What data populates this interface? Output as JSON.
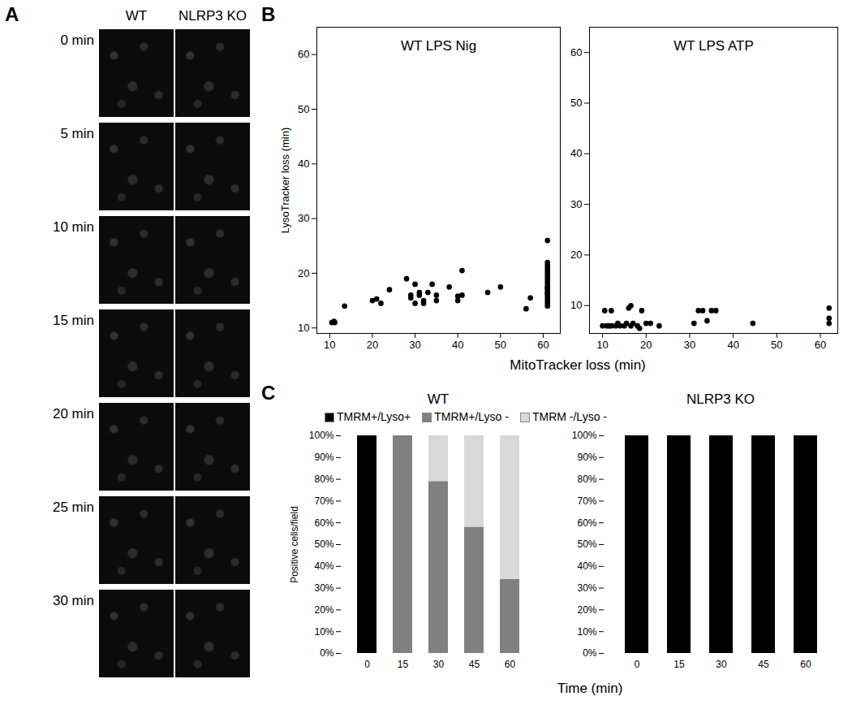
{
  "panel_labels": [
    "A",
    "B",
    "C"
  ],
  "panel_a": {
    "columns": [
      "WT",
      "NLRP3 KO"
    ],
    "rows": [
      "0 min",
      "5 min",
      "10 min",
      "15 min",
      "20 min",
      "25 min",
      "30 min"
    ]
  },
  "chart_data": [
    {
      "type": "scatter",
      "title": "WT LPS Nig",
      "xlabel": "MitoTracker loss (min)",
      "ylabel": "LysoTracker loss (min)",
      "color": "#000000",
      "marker": "circle",
      "grid": false,
      "xlim": [
        7,
        64
      ],
      "ylim": [
        9,
        65
      ],
      "xticks": [
        10,
        20,
        30,
        40,
        50,
        60
      ],
      "yticks": [
        10,
        20,
        30,
        40,
        50,
        60
      ],
      "x": [
        10.5,
        11,
        11.2,
        13.5,
        20,
        21,
        22,
        24,
        28,
        29,
        29,
        30,
        30,
        31,
        31,
        32,
        32,
        33,
        34,
        35,
        35,
        38,
        40,
        40,
        41,
        41,
        47,
        50,
        56,
        57,
        61,
        61,
        61,
        61,
        61,
        61,
        61,
        61,
        61,
        61,
        61,
        61,
        61,
        61,
        61,
        61,
        61,
        61,
        61,
        61
      ],
      "y": [
        11,
        11.2,
        11,
        14,
        15,
        15.3,
        14.5,
        17,
        19,
        16,
        15.5,
        18,
        14.5,
        16,
        16.5,
        15,
        14.5,
        16.5,
        18,
        15,
        16,
        17.5,
        15,
        15.8,
        20.5,
        16,
        16.5,
        17.5,
        13.5,
        15.5,
        14,
        14.5,
        15,
        15.5,
        16,
        16.3,
        16.5,
        17,
        17.3,
        17.5,
        18,
        18.5,
        19,
        19.5,
        20,
        20.5,
        21,
        21.5,
        22,
        26
      ]
    },
    {
      "type": "scatter",
      "title": "WT LPS ATP",
      "color": "#000000",
      "marker": "circle",
      "grid": false,
      "xlim": [
        7,
        64
      ],
      "ylim": [
        4.5,
        65
      ],
      "xticks": [
        10,
        20,
        30,
        40,
        50,
        60
      ],
      "yticks": [
        10,
        20,
        30,
        40,
        50,
        60
      ],
      "x": [
        10,
        10.5,
        11,
        11.5,
        12,
        12,
        13,
        13.5,
        14,
        15,
        15.5,
        16,
        16.5,
        16.5,
        17,
        18,
        18.5,
        19,
        20,
        21,
        23,
        31,
        32,
        33,
        34,
        35,
        36,
        44.5,
        62,
        62,
        62
      ],
      "y": [
        6,
        9,
        6,
        6,
        6,
        9,
        6,
        6.5,
        6,
        6,
        6.5,
        9.5,
        10,
        6,
        6.5,
        6,
        5.5,
        9,
        6.5,
        6.5,
        6,
        6.5,
        9,
        9,
        7,
        9,
        9,
        6.5,
        9.5,
        7.5,
        6.5
      ]
    },
    {
      "type": "bar",
      "stacked": true,
      "title": "WT",
      "xlabel": "Time (min)",
      "ylabel": "Positive cells/field",
      "legend": "top",
      "grid": false,
      "categories": [
        "0",
        "15",
        "30",
        "45",
        "60"
      ],
      "ylim": [
        0,
        100
      ],
      "yticks": [
        {
          "value": 0,
          "label": "0%"
        },
        {
          "value": 10,
          "label": "10%"
        },
        {
          "value": 20,
          "label": "20%"
        },
        {
          "value": 30,
          "label": "30%"
        },
        {
          "value": 40,
          "label": "40%"
        },
        {
          "value": 50,
          "label": "50%"
        },
        {
          "value": 60,
          "label": "60%"
        },
        {
          "value": 70,
          "label": "70%"
        },
        {
          "value": 80,
          "label": "80%"
        },
        {
          "value": 90,
          "label": "90%"
        },
        {
          "value": 100,
          "label": "100%"
        }
      ],
      "series": [
        {
          "name": "TMRM+/Lyso+",
          "color": "#000000",
          "values": [
            100,
            0,
            0,
            0,
            0
          ]
        },
        {
          "name": "TMRM+/Lyso -",
          "color": "#808080",
          "values": [
            0,
            100,
            79,
            58,
            34
          ]
        },
        {
          "name": "TMRM -/Lyso -",
          "color": "#d9d9d9",
          "values": [
            0,
            0,
            21,
            42,
            66
          ]
        }
      ]
    },
    {
      "type": "bar",
      "stacked": true,
      "title": "NLRP3 KO",
      "grid": false,
      "categories": [
        "0",
        "15",
        "30",
        "45",
        "60"
      ],
      "ylim": [
        0,
        100
      ],
      "yticks": [
        {
          "value": 0,
          "label": "0%"
        },
        {
          "value": 10,
          "label": "10%"
        },
        {
          "value": 20,
          "label": "20%"
        },
        {
          "value": 30,
          "label": "30%"
        },
        {
          "value": 40,
          "label": "40%"
        },
        {
          "value": 50,
          "label": "50%"
        },
        {
          "value": 60,
          "label": "60%"
        },
        {
          "value": 70,
          "label": "70%"
        },
        {
          "value": 80,
          "label": "80%"
        },
        {
          "value": 90,
          "label": "90%"
        },
        {
          "value": 100,
          "label": "100%"
        }
      ],
      "series": [
        {
          "name": "TMRM+/Lyso+",
          "color": "#000000",
          "values": [
            100,
            100,
            100,
            100,
            100
          ]
        },
        {
          "name": "TMRM+/Lyso -",
          "color": "#808080",
          "values": [
            0,
            0,
            0,
            0,
            0
          ]
        },
        {
          "name": "TMRM -/Lyso -",
          "color": "#d9d9d9",
          "values": [
            0,
            0,
            0,
            0,
            0
          ]
        }
      ]
    }
  ]
}
